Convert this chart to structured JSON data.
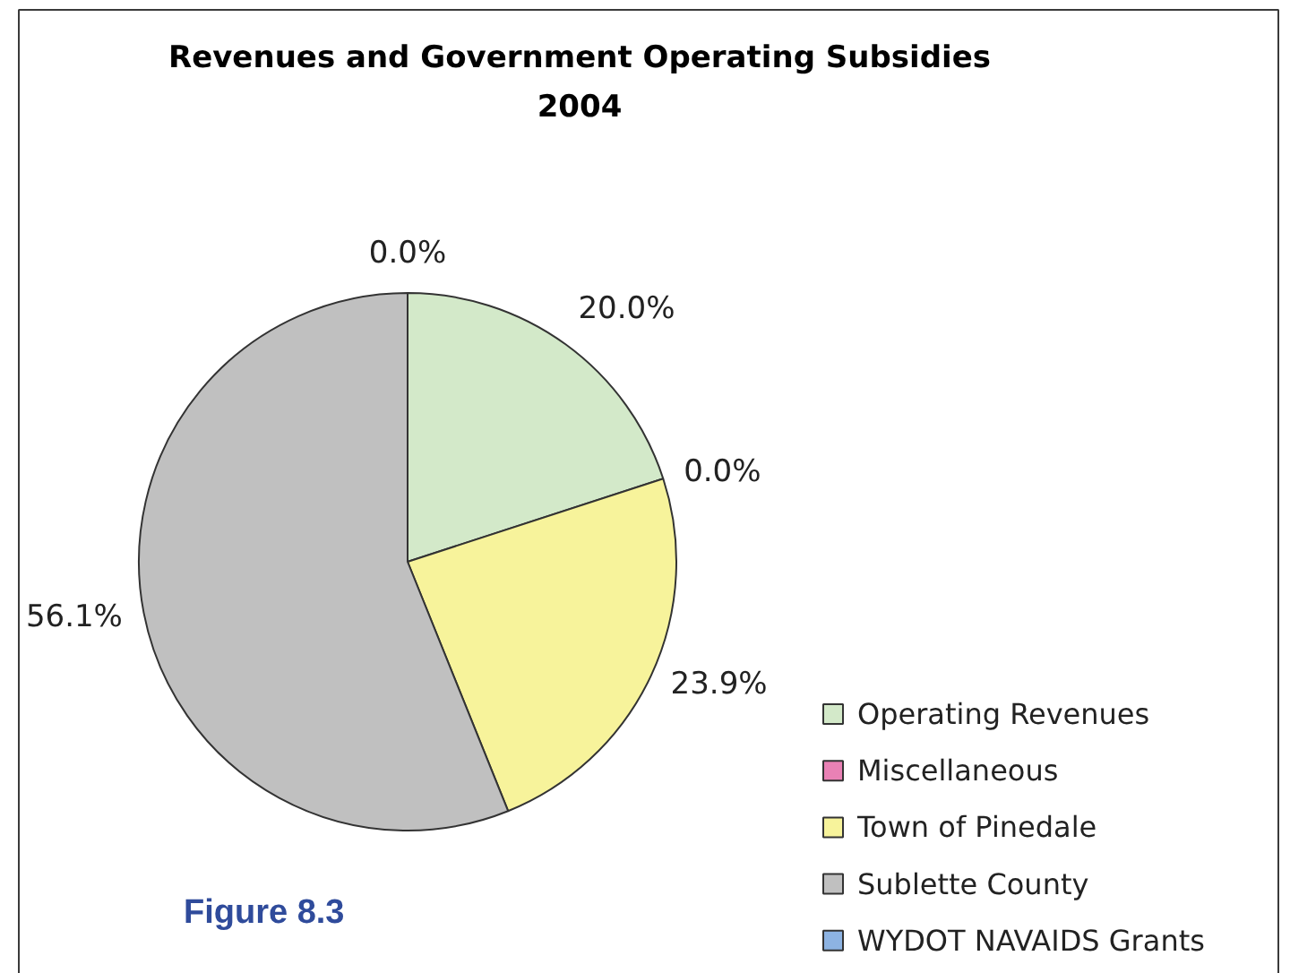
{
  "chart_data": {
    "type": "pie",
    "title": "Revenues and Government Operating Subsidies",
    "subtitle": "2004",
    "categories": [
      "Operating Revenues",
      "Miscellaneous",
      "Town of Pinedale",
      "Sublette County",
      "WYDOT NAVAIDS Grants"
    ],
    "values": [
      20.0,
      0.0,
      23.9,
      56.1,
      0.0
    ],
    "colors": [
      "#d3e9c9",
      "#e981b5",
      "#f7f39b",
      "#c0c0c0",
      "#8db3e2"
    ],
    "value_labels": [
      "20.0%",
      "0.0%",
      "23.9%",
      "56.1%",
      "0.0%"
    ],
    "legend": "bottom right",
    "annotations": [
      "Figure 8.3"
    ]
  }
}
